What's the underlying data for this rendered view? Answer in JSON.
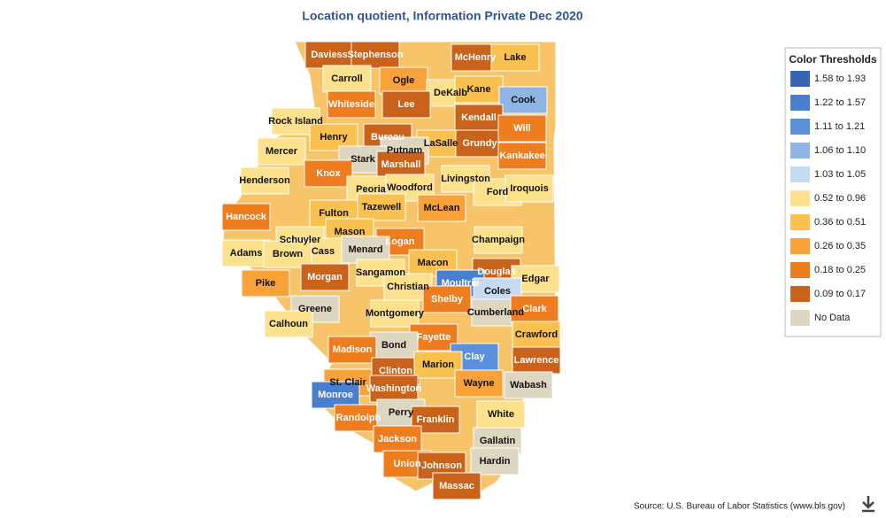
{
  "title": "Location quotient, Information Private Dec 2020",
  "legend": {
    "title": "Color Thresholds",
    "items": [
      {
        "label": "1.58 to 1.93",
        "color": "#3565b4"
      },
      {
        "label": "1.22 to 1.57",
        "color": "#4a7fd0"
      },
      {
        "label": "1.11 to 1.21",
        "color": "#5b90dc"
      },
      {
        "label": "1.06 to 1.10",
        "color": "#8fb5e4"
      },
      {
        "label": "1.03 to 1.05",
        "color": "#c6daf2"
      },
      {
        "label": "0.52 to 0.96",
        "color": "#fde18c"
      },
      {
        "label": "0.36 to 0.51",
        "color": "#fbc150"
      },
      {
        "label": "0.26 to 0.35",
        "color": "#f9a23a"
      },
      {
        "label": "0.18 to 0.25",
        "color": "#ee7d1f"
      },
      {
        "label": "0.09 to 0.17",
        "color": "#c9621a"
      },
      {
        "label": "No Data",
        "color": "#ddd6c1"
      }
    ]
  },
  "counties": [
    {
      "name": "Daviess",
      "color": "#c9621a"
    },
    {
      "name": "Stephenson",
      "color": "#c9621a"
    },
    {
      "name": "McHenry",
      "color": "#c9621a"
    },
    {
      "name": "Lake",
      "color": "#fbc150"
    },
    {
      "name": "Carroll",
      "color": "#fde18c"
    },
    {
      "name": "Ogle",
      "color": "#f9a23a"
    },
    {
      "name": "DeKalb",
      "color": "#fde18c"
    },
    {
      "name": "Kane",
      "color": "#fbc150"
    },
    {
      "name": "Cook",
      "color": "#8fb5e4"
    },
    {
      "name": "Whiteside",
      "color": "#ee7d1f"
    },
    {
      "name": "Lee",
      "color": "#c9621a"
    },
    {
      "name": "Rock Island",
      "color": "#fde18c"
    },
    {
      "name": "Kendall",
      "color": "#c9621a"
    },
    {
      "name": "Henry",
      "color": "#fbc150"
    },
    {
      "name": "Bureau",
      "color": "#c9621a"
    },
    {
      "name": "LaSalle",
      "color": "#fbc150"
    },
    {
      "name": "Grundy",
      "color": "#c9621a"
    },
    {
      "name": "Will",
      "color": "#ee7d1f"
    },
    {
      "name": "Putnam",
      "color": "#ddd6c1"
    },
    {
      "name": "Mercer",
      "color": "#fde18c"
    },
    {
      "name": "Kankakee",
      "color": "#ee7d1f"
    },
    {
      "name": "Stark",
      "color": "#ddd6c1"
    },
    {
      "name": "Marshall",
      "color": "#c9621a"
    },
    {
      "name": "Henderson",
      "color": "#fde18c"
    },
    {
      "name": "Knox",
      "color": "#ee7d1f"
    },
    {
      "name": "Livingston",
      "color": "#fde18c"
    },
    {
      "name": "Peoria",
      "color": "#fde18c"
    },
    {
      "name": "Woodford",
      "color": "#fde18c"
    },
    {
      "name": "Ford",
      "color": "#fde18c"
    },
    {
      "name": "Iroquois",
      "color": "#fde18c"
    },
    {
      "name": "Hancock",
      "color": "#ee7d1f"
    },
    {
      "name": "Fulton",
      "color": "#fbc150"
    },
    {
      "name": "Tazewell",
      "color": "#fbc150"
    },
    {
      "name": "McLean",
      "color": "#f9a23a"
    },
    {
      "name": "Mason",
      "color": "#fbc150"
    },
    {
      "name": "Schuyler",
      "color": "#fde18c"
    },
    {
      "name": "Logan",
      "color": "#ee7d1f"
    },
    {
      "name": "Champaign",
      "color": "#fde18c"
    },
    {
      "name": "Cass",
      "color": "#fde18c"
    },
    {
      "name": "Menard",
      "color": "#ddd6c1"
    },
    {
      "name": "Adams",
      "color": "#fde18c"
    },
    {
      "name": "Brown",
      "color": "#fde18c"
    },
    {
      "name": "Macon",
      "color": "#fbc150"
    },
    {
      "name": "Douglas",
      "color": "#c9621a"
    },
    {
      "name": "Pike",
      "color": "#f9a23a"
    },
    {
      "name": "Morgan",
      "color": "#c9621a"
    },
    {
      "name": "Sangamon",
      "color": "#fde18c"
    },
    {
      "name": "Moultrie",
      "color": "#4a7fd0"
    },
    {
      "name": "Edgar",
      "color": "#fde18c"
    },
    {
      "name": "Christian",
      "color": "#fde18c"
    },
    {
      "name": "Coles",
      "color": "#c6daf2"
    },
    {
      "name": "Shelby",
      "color": "#ee7d1f"
    },
    {
      "name": "Greene",
      "color": "#ddd6c1"
    },
    {
      "name": "Cumberland",
      "color": "#ddd6c1"
    },
    {
      "name": "Clark",
      "color": "#ee7d1f"
    },
    {
      "name": "Montgomery",
      "color": "#fde18c"
    },
    {
      "name": "Calhoun",
      "color": "#fde18c"
    },
    {
      "name": "Crawford",
      "color": "#fbc150"
    },
    {
      "name": "Fayette",
      "color": "#ee7d1f"
    },
    {
      "name": "Bond",
      "color": "#ddd6c1"
    },
    {
      "name": "Madison",
      "color": "#ee7d1f"
    },
    {
      "name": "Clay",
      "color": "#5b90dc"
    },
    {
      "name": "Lawrence",
      "color": "#c9621a"
    },
    {
      "name": "Clinton",
      "color": "#c9621a"
    },
    {
      "name": "Marion",
      "color": "#fbc150"
    },
    {
      "name": "St. Clair",
      "color": "#f9a23a"
    },
    {
      "name": "Washington",
      "color": "#c9621a"
    },
    {
      "name": "Wayne",
      "color": "#f9a23a"
    },
    {
      "name": "Wabash",
      "color": "#ddd6c1"
    },
    {
      "name": "Monroe",
      "color": "#4a7fd0"
    },
    {
      "name": "Randolph",
      "color": "#ee7d1f"
    },
    {
      "name": "Perry",
      "color": "#ddd6c1"
    },
    {
      "name": "Franklin",
      "color": "#c9621a"
    },
    {
      "name": "White",
      "color": "#fde18c"
    },
    {
      "name": "Jackson",
      "color": "#ee7d1f"
    },
    {
      "name": "Gallatin",
      "color": "#ddd6c1"
    },
    {
      "name": "Union",
      "color": "#ee7d1f"
    },
    {
      "name": "Johnson",
      "color": "#c9621a"
    },
    {
      "name": "Hardin",
      "color": "#ddd6c1"
    },
    {
      "name": "Massac",
      "color": "#c9621a"
    }
  ],
  "source": "Source: U.S. Bureau of Labor Statistics (www.bls.gov)"
}
